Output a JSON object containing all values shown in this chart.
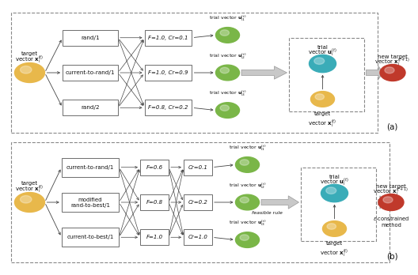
{
  "fig_width": 5.0,
  "fig_height": 3.28,
  "bg_color": "#ffffff",
  "colors": {
    "yellow": "#E8B84B",
    "green": "#7ab648",
    "cyan": "#3aacb8",
    "red_brown": "#c0392b",
    "box_face": "#ffffff",
    "box_edge": "#555555",
    "dashed_box": "#888888",
    "text_color": "#111111",
    "arrow_body": "#c8c8c8",
    "arrow_edge": "#999999",
    "line_color": "#444444"
  },
  "panel_a": {
    "strategy_boxes": [
      "rand/1",
      "current-to-rand/1",
      "rand/2"
    ],
    "param_boxes": [
      "F=1.0, Cr=0.1",
      "F=1.0, Cr=0.9",
      "F=0.8, Cr=0.2"
    ],
    "trial_labels": [
      "trial vector $\\mathbf{u}_{i1}^{(t)}$",
      "trial vector $\\mathbf{u}_{i2}^{(t)}$",
      "trial vector $\\mathbf{u}_{i3}^{(t)}$"
    ],
    "target_start_label": "target\nvector $\\mathbf{x}_i^{(t)}$",
    "trial_select_label": "trial\nvector $\\mathbf{u}_i^{(t)}$",
    "target_inner_label": "target\nvector $\\mathbf{x}_i^{(t)}$",
    "new_target_label": "new target\nvector $\\mathbf{x}_i^{(t+1)}$",
    "label": "(a)"
  },
  "panel_b": {
    "strategy_boxes": [
      "current-to-rand/1",
      "modified\nrand-to-best/1",
      "current-to-best/1"
    ],
    "f_boxes": [
      "F=0.6",
      "F=0.8",
      "F=1.0"
    ],
    "cr_boxes": [
      "Cr=0.1",
      "Cr=0.2",
      "Cr=1.0"
    ],
    "trial_labels": [
      "trial vector $\\mathbf{u}_{i1}^{(t)}$",
      "trial vector $\\mathbf{u}_{i2}^{(t)}$",
      "trial vector $\\mathbf{u}_{i3}^{(t)}$"
    ],
    "target_start_label": "target\nvector $\\mathbf{x}_i^{(t)}$",
    "feasible_label": "feasible rule",
    "trial_select_label": "trial\nvector $\\mathbf{u}_i^{(t)}$",
    "target_inner_label": "target\nvector $\\mathbf{x}_i^{(t)}$",
    "new_target_label": "new target\nvector $\\mathbf{x}_i^{(t+1)}$",
    "epsilon_label": "$\\varepsilon$-constrained\nmethod",
    "label": "(b)"
  }
}
